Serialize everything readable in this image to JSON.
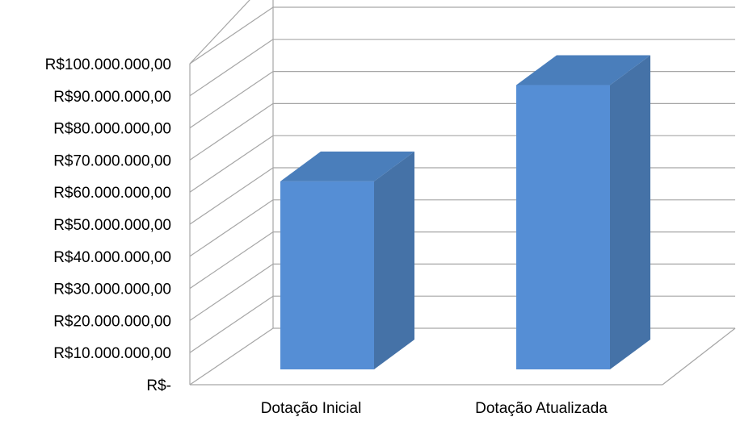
{
  "chart_data": {
    "type": "bar",
    "three_d": true,
    "categories": [
      "Dotação Inicial",
      "Dotação Atualizada"
    ],
    "series": [
      {
        "values": [
          61500000,
          93000000
        ]
      }
    ],
    "ylim": [
      0,
      100000000
    ],
    "y_ticks": [
      0,
      10000000,
      20000000,
      30000000,
      40000000,
      50000000,
      60000000,
      70000000,
      80000000,
      90000000,
      100000000
    ],
    "y_tick_labels": [
      "R$-",
      "R$10.000.000,00",
      "R$20.000.000,00",
      "R$30.000.000,00",
      "R$40.000.000,00",
      "R$50.000.000,00",
      "R$60.000.000,00",
      "R$70.000.000,00",
      "R$80.000.000,00",
      "R$90.000.000,00",
      "R$100.000.000,00"
    ],
    "grid": true,
    "legend": "none",
    "colors": {
      "bar_front": "#558ed5",
      "bar_side": "#4572a7",
      "bar_top": "#4a7ebb",
      "grid": "#a6a6a6"
    }
  }
}
